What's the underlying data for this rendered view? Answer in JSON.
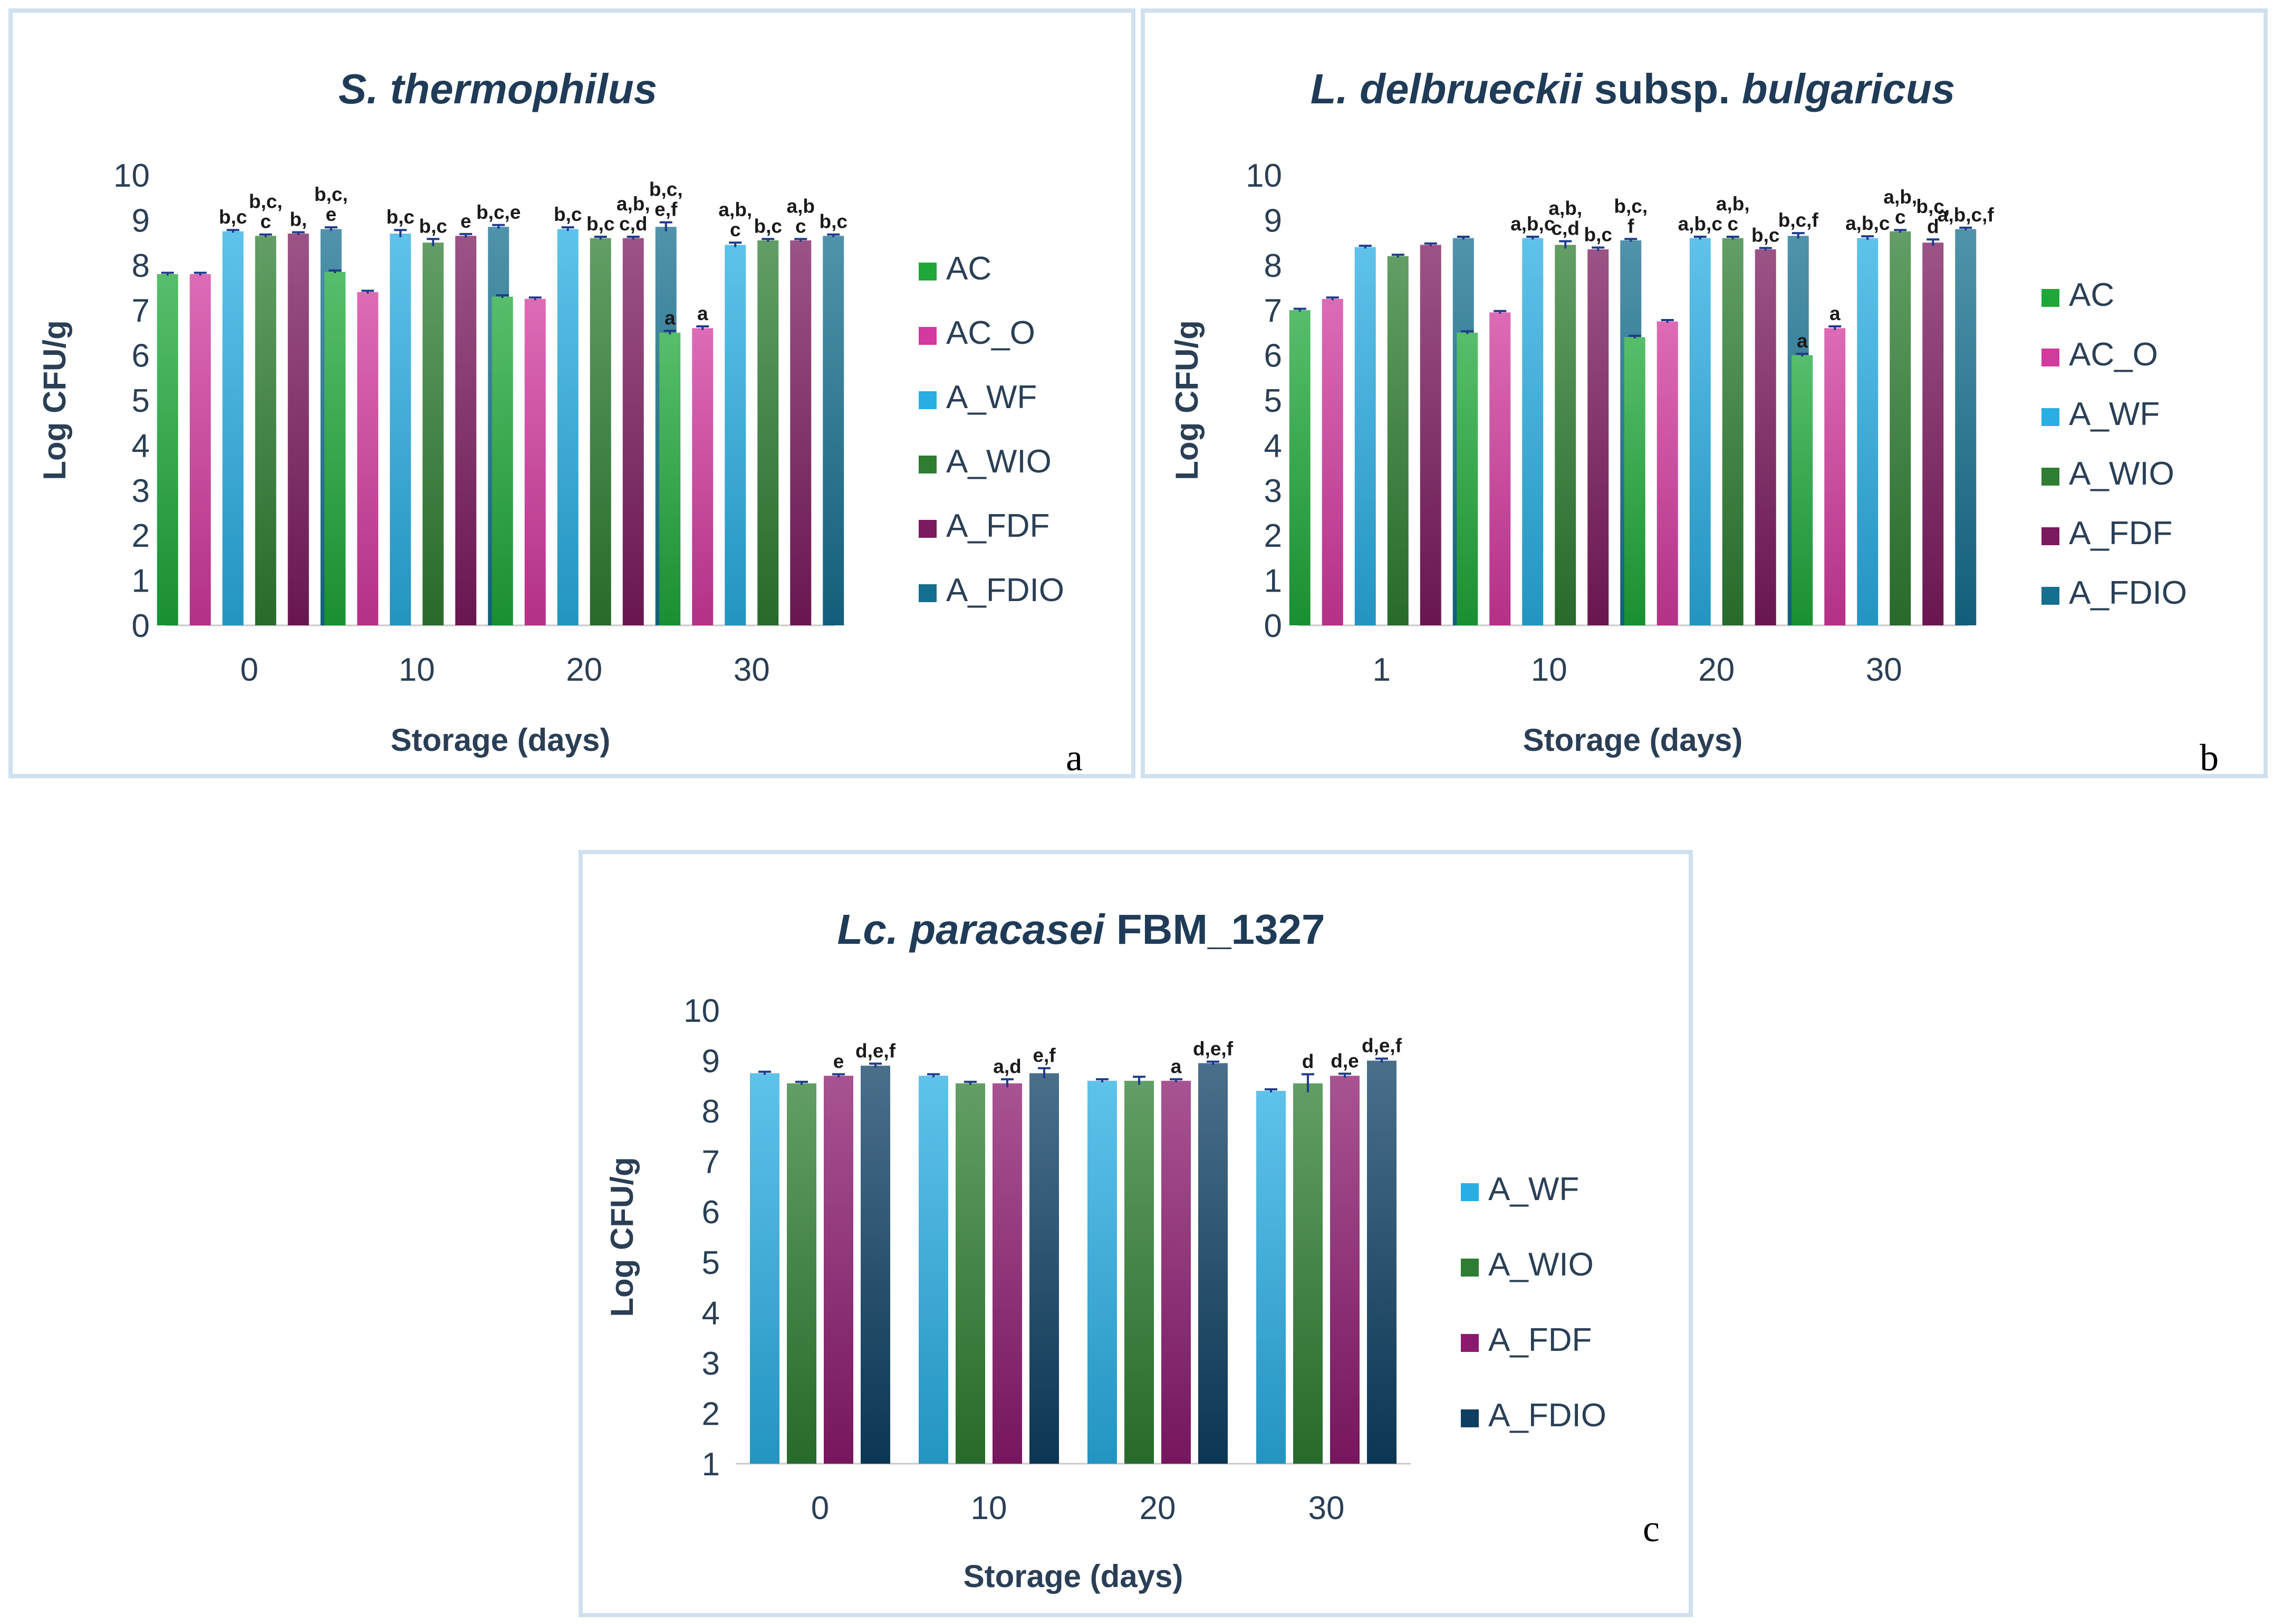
{
  "chart_data": [
    {
      "type": "bar",
      "title_parts": [
        "S. thermophilus"
      ],
      "title_italic": [
        true
      ],
      "xlabel": "Storage (days)",
      "ylabel": "Log CFU/g",
      "ylim": [
        0,
        10
      ],
      "yticks": [
        "0",
        "1",
        "2",
        "3",
        "4",
        "5",
        "6",
        "7",
        "8",
        "9",
        "10"
      ],
      "categories": [
        "0",
        "10",
        "20",
        "30"
      ],
      "grid": false,
      "legend_position": "right",
      "series": [
        {
          "name": "AC",
          "color": "#1fa83a",
          "values": [
            7.8,
            7.85,
            7.3,
            6.5
          ],
          "errors": [
            0.03,
            0.03,
            0.03,
            0.04
          ],
          "labels": [
            "",
            "",
            "",
            "a"
          ]
        },
        {
          "name": "AC_O",
          "color": "#d23a9e",
          "values": [
            7.8,
            7.4,
            7.25,
            6.6
          ],
          "errors": [
            0.03,
            0.03,
            0.03,
            0.04
          ],
          "labels": [
            "",
            "",
            "",
            "a"
          ]
        },
        {
          "name": "A_WF",
          "color": "#29aee3",
          "values": [
            8.75,
            8.7,
            8.8,
            8.45
          ],
          "errors": [
            0.03,
            0.08,
            0.04,
            0.05
          ],
          "labels": [
            "b,c",
            "b,c",
            "b,c",
            "a,b,\nc"
          ]
        },
        {
          "name": "A_WIO",
          "color": "#2e7d32",
          "values": [
            8.65,
            8.5,
            8.6,
            8.55
          ],
          "errors": [
            0.03,
            0.08,
            0.03,
            0.03
          ],
          "labels": [
            "b,c,\nc",
            "b,c",
            "b,c",
            "b,c"
          ]
        },
        {
          "name": "A_FDF",
          "color": "#7b1a5e",
          "values": [
            8.7,
            8.65,
            8.6,
            8.55
          ],
          "errors": [
            0.03,
            0.04,
            0.03,
            0.03
          ],
          "labels": [
            "b,",
            "e",
            "a,b,\nc,d",
            "a,b\nc"
          ]
        },
        {
          "name": "A_FDIO",
          "color": "#156f8f",
          "values": [
            8.8,
            8.85,
            8.85,
            8.65
          ],
          "errors": [
            0.04,
            0.04,
            0.1,
            0.03
          ],
          "labels": [
            "b,c,\ne",
            "b,c,e",
            "b,c,\ne,f",
            "b,c"
          ]
        }
      ],
      "panel_letter": "a"
    },
    {
      "type": "bar",
      "title_parts": [
        "L. delbrueckii",
        " subsp. ",
        "bulgaricus"
      ],
      "title_italic": [
        true,
        false,
        true
      ],
      "xlabel": "Storage (days)",
      "ylabel": "Log CFU/g",
      "ylim": [
        0,
        10
      ],
      "yticks": [
        "0",
        "1",
        "2",
        "3",
        "4",
        "5",
        "6",
        "7",
        "8",
        "9",
        "10"
      ],
      "categories": [
        "1",
        "10",
        "20",
        "30"
      ],
      "grid": false,
      "legend_position": "right",
      "series": [
        {
          "name": "AC",
          "color": "#1fa83a",
          "values": [
            7.0,
            6.5,
            6.4,
            6.0
          ],
          "errors": [
            0.03,
            0.03,
            0.03,
            0.03
          ],
          "labels": [
            "",
            "",
            "",
            "a"
          ]
        },
        {
          "name": "AC_O",
          "color": "#d23a9e",
          "values": [
            7.25,
            6.95,
            6.75,
            6.6
          ],
          "errors": [
            0.03,
            0.03,
            0.03,
            0.04
          ],
          "labels": [
            "",
            "",
            "",
            "a"
          ]
        },
        {
          "name": "A_WF",
          "color": "#29aee3",
          "values": [
            8.4,
            8.6,
            8.6,
            8.6
          ],
          "errors": [
            0.03,
            0.03,
            0.03,
            0.04
          ],
          "labels": [
            "",
            "a,b,c",
            "a,b,c",
            "a,b,c"
          ]
        },
        {
          "name": "A_WIO",
          "color": "#2e7d32",
          "values": [
            8.2,
            8.45,
            8.6,
            8.75
          ],
          "errors": [
            0.03,
            0.08,
            0.03,
            0.03
          ],
          "labels": [
            "",
            "a,b,\nc,d",
            "a,b,\nc",
            "a,b,\nc"
          ]
        },
        {
          "name": "A_FDF",
          "color": "#7b1a5e",
          "values": [
            8.45,
            8.35,
            8.35,
            8.5
          ],
          "errors": [
            0.03,
            0.04,
            0.03,
            0.07
          ],
          "labels": [
            "",
            "b,c",
            "b,c",
            "b,c,\nd"
          ]
        },
        {
          "name": "A_FDIO",
          "color": "#156f8f",
          "values": [
            8.6,
            8.55,
            8.65,
            8.8
          ],
          "errors": [
            0.03,
            0.03,
            0.06,
            0.03
          ],
          "labels": [
            "",
            "b,c,\nf",
            "b,c,f",
            "a,b,c,f"
          ]
        }
      ],
      "panel_letter": "b"
    },
    {
      "type": "bar",
      "title_parts": [
        "Lc. paracasei",
        " FBM_1327"
      ],
      "title_italic": [
        true,
        false
      ],
      "xlabel": "Storage (days)",
      "ylabel": "Log CFU/g",
      "ylim": [
        1,
        10
      ],
      "yticks": [
        "1",
        "2",
        "3",
        "4",
        "5",
        "6",
        "7",
        "8",
        "9",
        "10"
      ],
      "categories": [
        "0",
        "10",
        "20",
        "30"
      ],
      "grid": false,
      "legend_position": "right",
      "series": [
        {
          "name": "A_WF",
          "color": "#29aee3",
          "values": [
            8.75,
            8.7,
            8.6,
            8.4
          ],
          "errors": [
            0.03,
            0.03,
            0.03,
            0.03
          ],
          "labels": [
            "",
            "",
            "",
            ""
          ]
        },
        {
          "name": "A_WIO",
          "color": "#2e7d32",
          "values": [
            8.55,
            8.55,
            8.6,
            8.55
          ],
          "errors": [
            0.03,
            0.03,
            0.08,
            0.18
          ],
          "labels": [
            "",
            "",
            "",
            "d"
          ]
        },
        {
          "name": "A_FDF",
          "color": "#8b1a6e",
          "values": [
            8.7,
            8.55,
            8.6,
            8.7
          ],
          "errors": [
            0.03,
            0.08,
            0.03,
            0.04
          ],
          "labels": [
            "e",
            "a,d",
            "a",
            "d,e"
          ]
        },
        {
          "name": "A_FDIO",
          "color": "#0d3f63",
          "values": [
            8.9,
            8.75,
            8.95,
            9.0
          ],
          "errors": [
            0.04,
            0.1,
            0.03,
            0.04
          ],
          "labels": [
            "d,e,f",
            "e,f",
            "d,e,f",
            "d,e,f"
          ]
        }
      ],
      "panel_letter": "c"
    }
  ]
}
